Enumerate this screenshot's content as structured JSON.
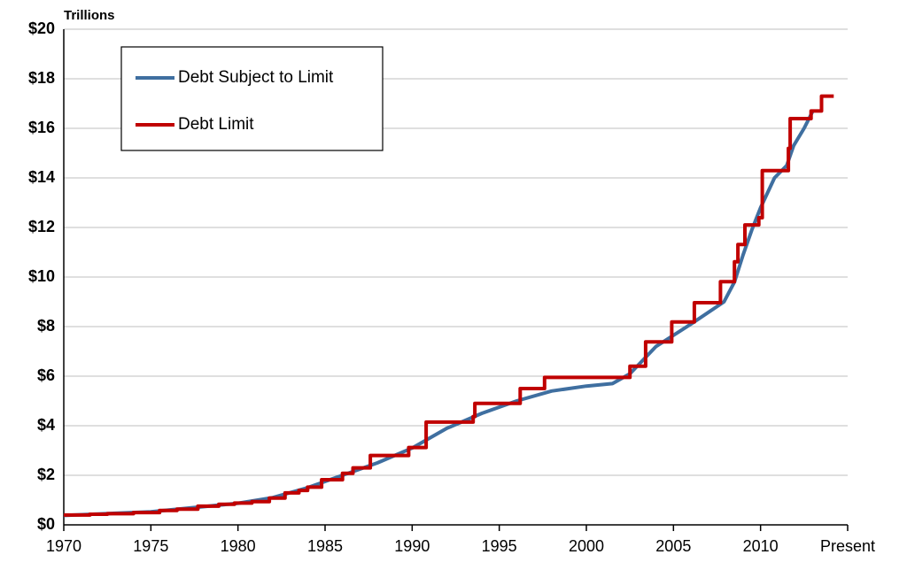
{
  "chart_data": {
    "type": "line",
    "y_label": "Trillions",
    "xlim": [
      1970,
      2015
    ],
    "ylim": [
      0,
      20
    ],
    "xticks": [
      1970,
      1975,
      1980,
      1985,
      1990,
      1995,
      2000,
      2005,
      2010,
      {
        "value": 2015,
        "label": "Present"
      }
    ],
    "yticks": [
      {
        "value": 0,
        "label": "$0"
      },
      {
        "value": 2,
        "label": "$2"
      },
      {
        "value": 4,
        "label": "$4"
      },
      {
        "value": 6,
        "label": "$6"
      },
      {
        "value": 8,
        "label": "$8"
      },
      {
        "value": 10,
        "label": "$10"
      },
      {
        "value": 12,
        "label": "$12"
      },
      {
        "value": 14,
        "label": "$14"
      },
      {
        "value": 16,
        "label": "$16"
      },
      {
        "value": 18,
        "label": "$18"
      },
      {
        "value": 20,
        "label": "$20"
      }
    ],
    "grid": true,
    "legend": "upper left",
    "series": [
      {
        "name": "Debt Subject to Limit",
        "color": "#3f6fa0",
        "x": [
          1970,
          1975,
          1980,
          1982,
          1984,
          1986,
          1988,
          1990,
          1992,
          1994,
          1996,
          1998,
          2000,
          2001.5,
          2002.5,
          2004,
          2006,
          2007.9,
          2008.5,
          2009,
          2009.5,
          2010,
          2010.8,
          2011.5,
          2011.9,
          2012.5,
          2013
        ],
        "values": [
          0.38,
          0.53,
          0.87,
          1.1,
          1.5,
          2.0,
          2.5,
          3.1,
          3.9,
          4.5,
          5.0,
          5.4,
          5.6,
          5.7,
          6.1,
          7.2,
          8.1,
          9.0,
          9.8,
          10.9,
          11.9,
          12.8,
          14.0,
          14.5,
          15.3,
          16.0,
          16.7
        ]
      },
      {
        "name": "Debt Limit",
        "color": "#c00000",
        "x": [
          1970,
          1971.5,
          1971.5,
          1972.5,
          1972.5,
          1974,
          1974,
          1975.5,
          1975.5,
          1976.5,
          1976.5,
          1977.7,
          1977.7,
          1978.9,
          1978.9,
          1979.8,
          1979.8,
          1980.8,
          1980.8,
          1981.8,
          1981.8,
          1982.7,
          1982.7,
          1983.5,
          1983.5,
          1984,
          1984,
          1984.8,
          1984.8,
          1986,
          1986,
          1986.6,
          1986.6,
          1987.6,
          1987.6,
          1989.8,
          1989.8,
          1990.8,
          1990.8,
          1993.5,
          1993.5,
          1993.6,
          1993.6,
          1996.2,
          1996.2,
          1997.6,
          1997.6,
          2002.5,
          2002.5,
          2003.4,
          2003.4,
          2004.9,
          2004.9,
          2006.2,
          2006.2,
          2007.7,
          2007.7,
          2008.5,
          2008.5,
          2008.7,
          2008.7,
          2009.1,
          2009.1,
          2009.9,
          2009.9,
          2010.1,
          2010.1,
          2011.6,
          2011.6,
          2011.7,
          2011.7,
          2012.9,
          2012.9,
          2013.5,
          2013.5,
          2014.2
        ],
        "values": [
          0.395,
          0.395,
          0.43,
          0.43,
          0.45,
          0.45,
          0.495,
          0.495,
          0.577,
          0.577,
          0.636,
          0.636,
          0.752,
          0.752,
          0.83,
          0.83,
          0.879,
          0.879,
          0.935,
          0.935,
          1.08,
          1.08,
          1.29,
          1.29,
          1.39,
          1.39,
          1.52,
          1.52,
          1.82,
          1.82,
          2.08,
          2.08,
          2.3,
          2.3,
          2.8,
          2.8,
          3.12,
          3.12,
          4.145,
          4.145,
          4.37,
          4.37,
          4.9,
          4.9,
          5.5,
          5.5,
          5.95,
          5.95,
          6.4,
          6.4,
          7.384,
          7.384,
          8.184,
          8.184,
          8.965,
          8.965,
          9.815,
          9.815,
          10.615,
          10.615,
          11.315,
          11.315,
          12.104,
          12.104,
          12.394,
          12.394,
          14.294,
          14.294,
          15.194,
          15.194,
          16.394,
          16.394,
          16.7,
          16.7,
          17.3,
          17.3
        ]
      }
    ]
  }
}
